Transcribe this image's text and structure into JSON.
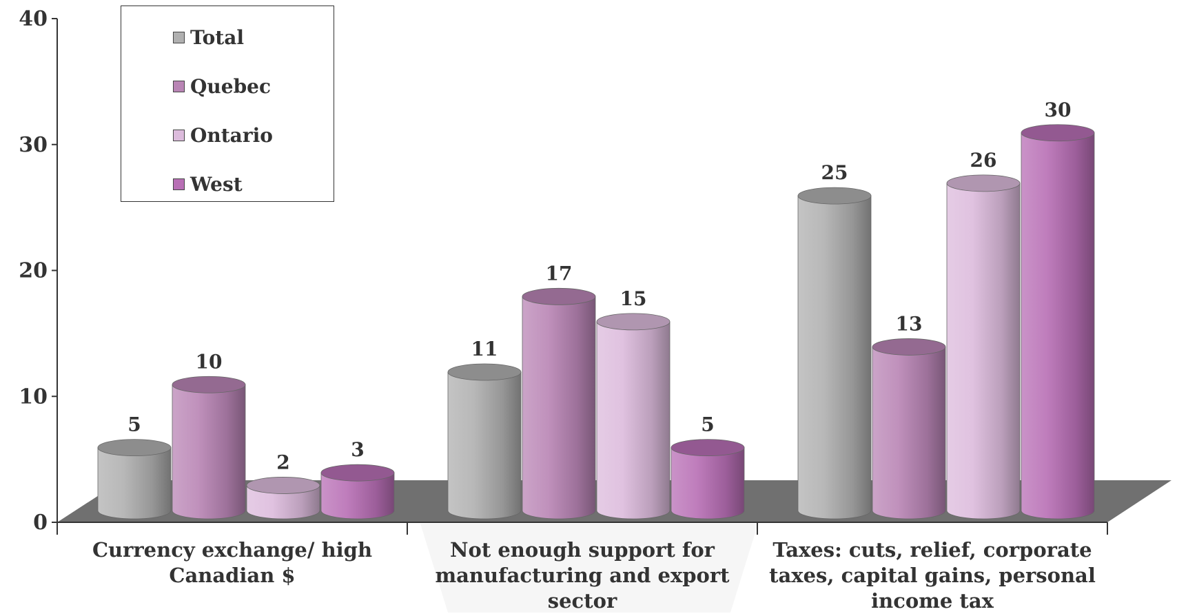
{
  "chart_data": {
    "type": "bar",
    "style": "3d-cylinder",
    "categories": [
      [
        "Currency exchange/ high",
        "Canadian $"
      ],
      [
        "Not enough support for",
        "manufacturing and export",
        "sector"
      ],
      [
        "Taxes: cuts, relief, corporate",
        "taxes, capital gains, personal",
        "income tax"
      ]
    ],
    "series": [
      {
        "name": "Total",
        "color": "#b0b0b0",
        "values": [
          5,
          11,
          25
        ]
      },
      {
        "name": "Quebec",
        "color": "#b985b5",
        "values": [
          10,
          17,
          13
        ]
      },
      {
        "name": "Ontario",
        "color": "#dcbbdc",
        "values": [
          2,
          15,
          26
        ]
      },
      {
        "name": "West",
        "color": "#b86fb5",
        "values": [
          3,
          5,
          30
        ]
      }
    ],
    "ylim": [
      0,
      40
    ],
    "yticks": [
      0,
      10,
      20,
      30,
      40
    ],
    "legend_position": "top-left",
    "grid": false,
    "title": "",
    "xlabel": "",
    "ylabel": ""
  },
  "legend": {
    "items": [
      {
        "label": "Total",
        "color": "#b0b0b0"
      },
      {
        "label": "Quebec",
        "color": "#b985b5"
      },
      {
        "label": "Ontario",
        "color": "#dcbbdc"
      },
      {
        "label": "West",
        "color": "#b86fb5"
      }
    ]
  }
}
